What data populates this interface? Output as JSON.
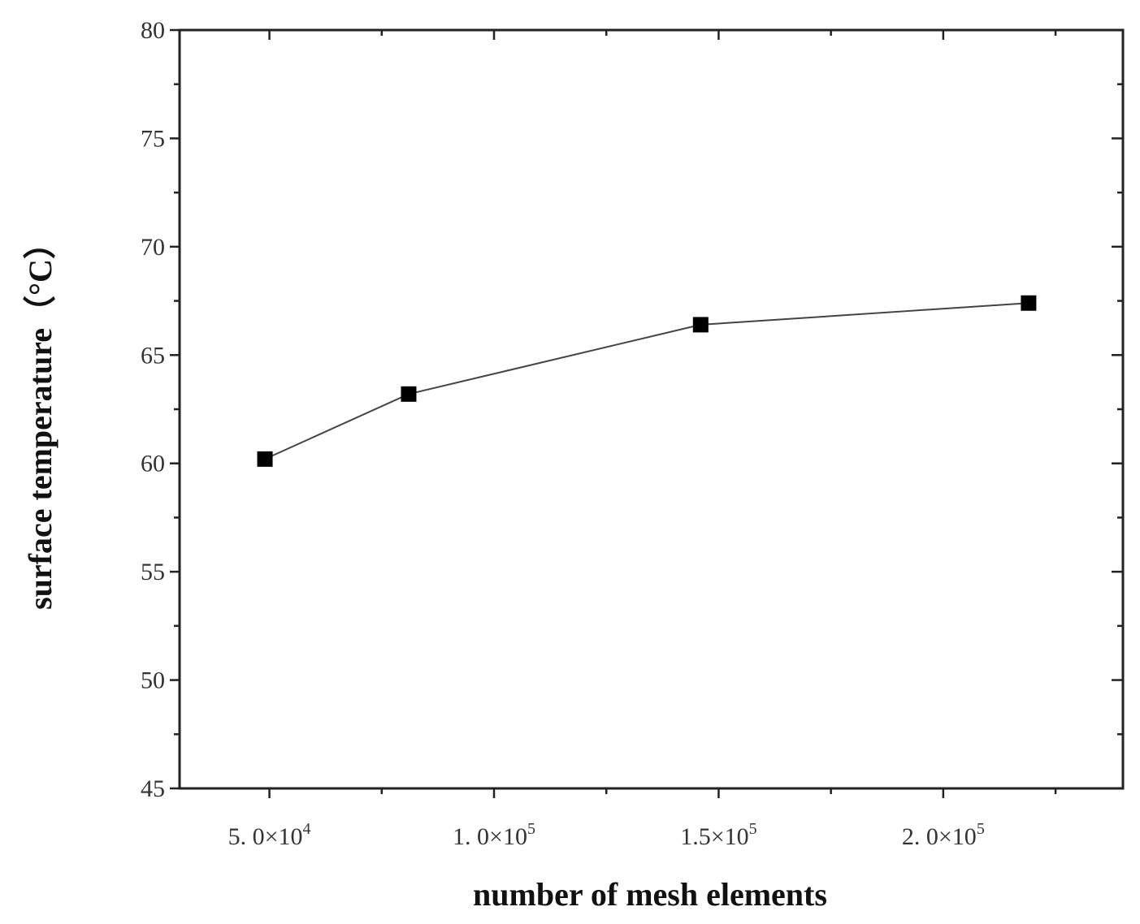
{
  "chart_data": {
    "type": "line",
    "xlabel": "number of mesh elements",
    "ylabel": "surface temperature（°C）",
    "xlim": [
      30000,
      240000
    ],
    "ylim": [
      45,
      80
    ],
    "x_ticks": [
      {
        "value": 50000,
        "mantissa": "5. 0×10",
        "exp": "4"
      },
      {
        "value": 100000,
        "mantissa": "1. 0×10",
        "exp": "5"
      },
      {
        "value": 150000,
        "mantissa": "1.5×10",
        "exp": "5"
      },
      {
        "value": 200000,
        "mantissa": "2. 0×10",
        "exp": "5"
      }
    ],
    "x_minor_ticks": [
      75000,
      125000,
      175000,
      225000
    ],
    "y_ticks": [
      "45",
      "50",
      "55",
      "60",
      "65",
      "70",
      "75",
      "80"
    ],
    "y_minor_step": 2.5,
    "grid": false,
    "series": [
      {
        "marker": "square",
        "color": "#000000",
        "x": [
          49000,
          81000,
          146000,
          219000
        ],
        "y": [
          60.2,
          63.2,
          66.4,
          67.4
        ]
      }
    ]
  }
}
